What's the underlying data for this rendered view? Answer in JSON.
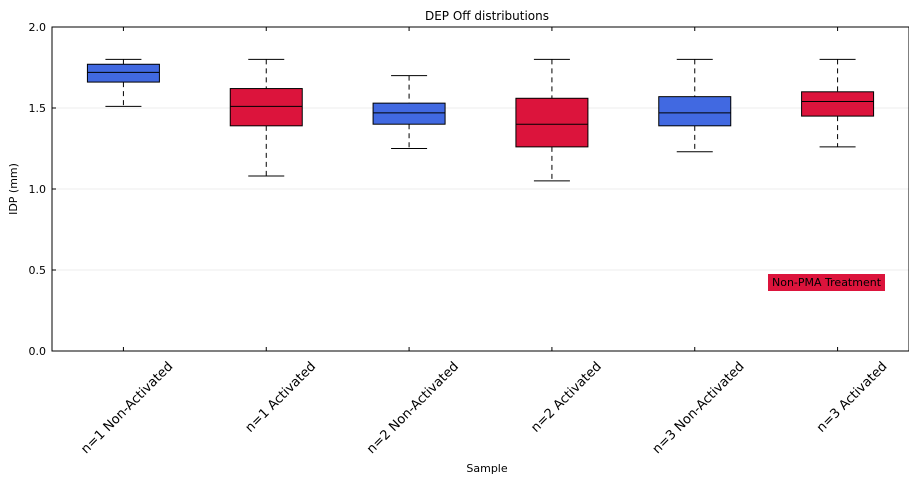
{
  "chart_data": {
    "type": "box",
    "title": "DEP Off distributions",
    "xlabel": "Sample",
    "ylabel": "IDP (mm)",
    "ylim": [
      0.0,
      2.0
    ],
    "yticks": [
      "0.0",
      "0.5",
      "1.0",
      "1.5",
      "2.0"
    ],
    "grid": "horizontal",
    "legend": {
      "label": "Non-PMA Treatment",
      "color": "#dc143c",
      "position": "lower-right"
    },
    "categories": [
      "n=1 Non-Activated",
      "n=1 Activated",
      "n=2 Non-Activated",
      "n=2 Activated",
      "n=3 Non-Activated",
      "n=3 Activated"
    ],
    "boxes": [
      {
        "whisker_low": 1.51,
        "q1": 1.66,
        "median": 1.72,
        "q3": 1.77,
        "whisker_high": 1.8,
        "color": "#4169e1"
      },
      {
        "whisker_low": 1.08,
        "q1": 1.39,
        "median": 1.51,
        "q3": 1.62,
        "whisker_high": 1.8,
        "color": "#dc143c"
      },
      {
        "whisker_low": 1.25,
        "q1": 1.4,
        "median": 1.47,
        "q3": 1.53,
        "whisker_high": 1.7,
        "color": "#4169e1"
      },
      {
        "whisker_low": 1.05,
        "q1": 1.26,
        "median": 1.4,
        "q3": 1.56,
        "whisker_high": 1.8,
        "color": "#dc143c"
      },
      {
        "whisker_low": 1.23,
        "q1": 1.39,
        "median": 1.47,
        "q3": 1.57,
        "whisker_high": 1.8,
        "color": "#4169e1"
      },
      {
        "whisker_low": 1.26,
        "q1": 1.45,
        "median": 1.54,
        "q3": 1.6,
        "whisker_high": 1.8,
        "color": "#dc143c"
      }
    ]
  }
}
